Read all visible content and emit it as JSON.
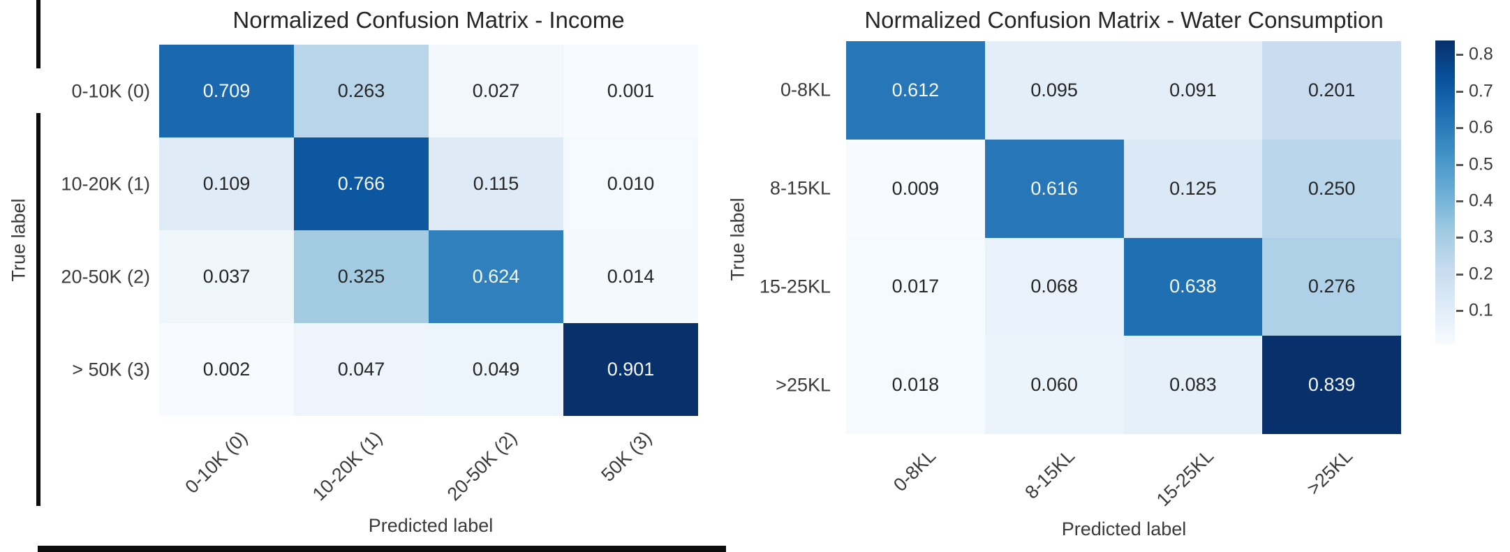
{
  "chart_data": [
    {
      "type": "heatmap",
      "title": "Normalized Confusion Matrix - Income",
      "xlabel": "Predicted label",
      "ylabel": "True label",
      "categories": [
        "0-10K (0)",
        "10-20K (1)",
        "20-50K (2)",
        "> 50K (3)"
      ],
      "row_labels": [
        "0-10K (0)",
        "10-20K (1)",
        "20-50K (2)",
        "> 50K (3)"
      ],
      "col_labels": [
        "0-10K (0)",
        "10-20K (1)",
        "20-50K (2)",
        "50K (3)"
      ],
      "matrix": [
        [
          0.709,
          0.263,
          0.027,
          0.001
        ],
        [
          0.109,
          0.766,
          0.115,
          0.01
        ],
        [
          0.037,
          0.325,
          0.624,
          0.014
        ],
        [
          0.002,
          0.047,
          0.049,
          0.901
        ]
      ],
      "colormap": "Blues",
      "vmin": 0.001,
      "vmax": 0.901,
      "colorbar": false
    },
    {
      "type": "heatmap",
      "title": "Normalized Confusion Matrix - Water Consumption",
      "xlabel": "Predicted label",
      "ylabel": "True label",
      "categories": [
        "0-8KL",
        "8-15KL",
        "15-25KL",
        ">25KL"
      ],
      "row_labels": [
        "0-8KL",
        "8-15KL",
        "15-25KL",
        ">25KL"
      ],
      "col_labels": [
        "0-8KL",
        "8-15KL",
        "15-25KL",
        ">25KL"
      ],
      "matrix": [
        [
          0.612,
          0.095,
          0.091,
          0.201
        ],
        [
          0.009,
          0.616,
          0.125,
          0.25
        ],
        [
          0.017,
          0.068,
          0.638,
          0.276
        ],
        [
          0.018,
          0.06,
          0.083,
          0.839
        ]
      ],
      "colormap": "Blues",
      "vmin": 0.009,
      "vmax": 0.839,
      "colorbar": true,
      "colorbar_ticks": [
        "0.8",
        "0.7",
        "0.6",
        "0.5",
        "0.4",
        "0.3",
        "0.2",
        "0.1"
      ]
    }
  ],
  "colors": {
    "blues_colormap": [
      "#f7fbff",
      "#deebf7",
      "#c6dbef",
      "#9ecae1",
      "#6baed6",
      "#4292c6",
      "#2171b5",
      "#08519c",
      "#08306b"
    ],
    "cell_text_dark": "#262626",
    "cell_text_light": "#f4f8fd",
    "axis_text": "#3a3a3a",
    "document_border": "#0c0c0c"
  }
}
